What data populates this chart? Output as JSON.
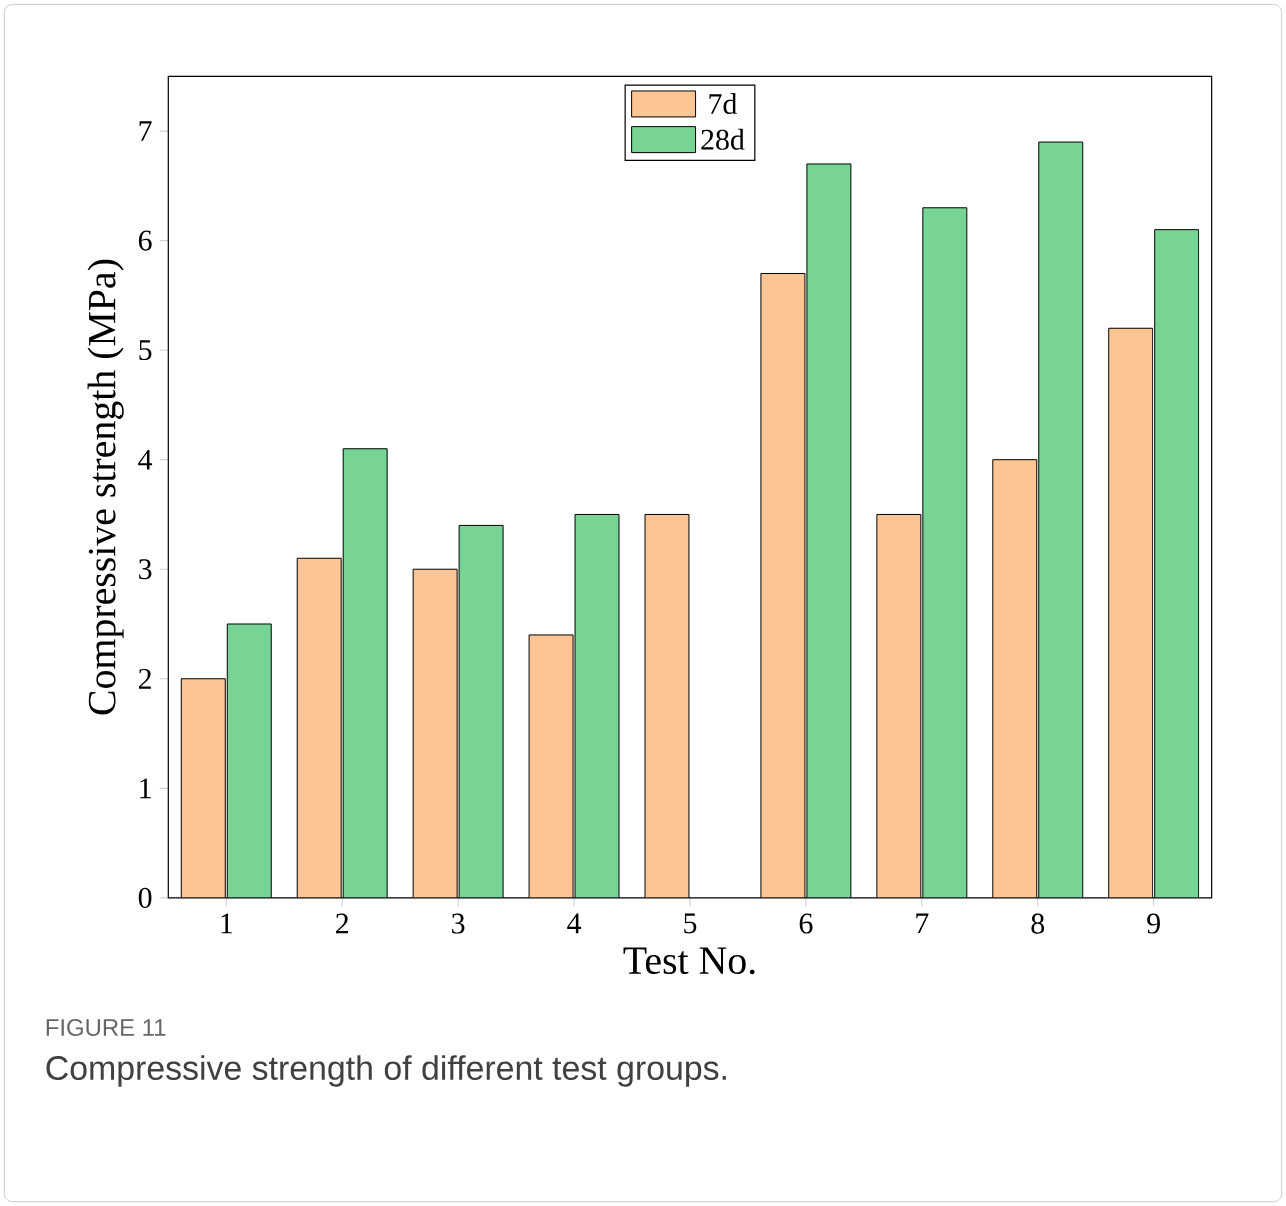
{
  "chart_data": {
    "type": "bar",
    "xlabel": "Test No.",
    "ylabel": "Compressive strength (MPa)",
    "categories": [
      "1",
      "2",
      "3",
      "4",
      "5",
      "6",
      "7",
      "8",
      "9"
    ],
    "series": [
      {
        "name": "7d",
        "color": "#fdc593",
        "values": [
          2.0,
          3.1,
          3.0,
          2.4,
          3.5,
          5.7,
          3.5,
          4.0,
          5.2
        ]
      },
      {
        "name": "28d",
        "color": "#78d494",
        "values": [
          2.5,
          4.1,
          3.4,
          3.5,
          null,
          6.7,
          6.3,
          6.9,
          6.1
        ]
      }
    ],
    "ylim": [
      0,
      7.5
    ],
    "yticks": [
      0,
      1,
      2,
      3,
      4,
      5,
      6,
      7
    ],
    "legend": "top",
    "grid": false,
    "annotations": [
      "FIGURE 11",
      "Compressive strength of different test groups."
    ]
  }
}
